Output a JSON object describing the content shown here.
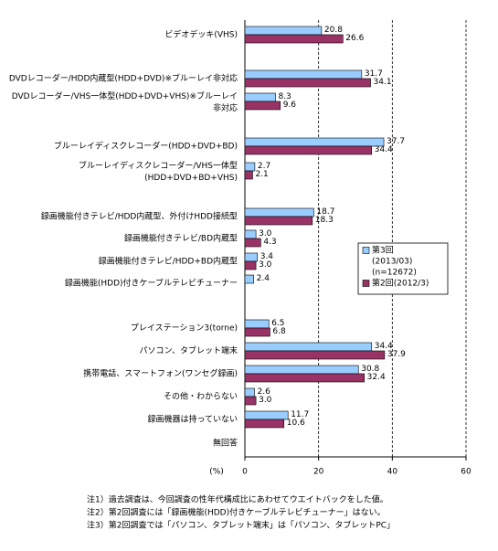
{
  "chart_data": {
    "type": "bar",
    "orientation": "horizontal",
    "categories": [
      "ビデオデッキ(VHS)",
      "DVDレコーダー/HDD内蔵型(HDD+DVD)※ブルーレイ非対応",
      "DVDレコーダー/VHS一体型(HDD+DVD+VHS)※ブルーレイ\n非対応",
      "ブルーレイディスクレコーダー(HDD+DVD+BD)",
      "ブルーレイディスクレコーダー/VHS一体型\n(HDD+DVD+BD+VHS)",
      "録画機能付きテレビ/HDD内蔵型、外付けHDD接続型",
      "録画機能付きテレビ/BD内蔵型",
      "録画機能付きテレビ/HDD+BD内蔵型",
      "録画機能(HDD)付きケーブルテレビチューナー",
      "プレイステーション3(torne)",
      "パソコン、タブレット端末",
      "携帯電話、スマートフォン(ワンセグ録画)",
      "その他・わからない",
      "録画機器は持っていない",
      "無回答"
    ],
    "series": [
      {
        "name": "第3回",
        "legend_subtext": [
          "(2013/03)",
          "(n=12672)"
        ],
        "color": "#99ccff",
        "values": [
          20.8,
          31.7,
          8.3,
          37.7,
          2.7,
          18.7,
          3.0,
          3.4,
          2.4,
          6.5,
          34.4,
          30.8,
          2.6,
          11.7,
          null
        ],
        "value_labels": [
          "20.8",
          "31.7",
          "8.3",
          "37.7",
          "2.7",
          "18.7",
          "3.0",
          "3.4",
          "2.4",
          "6.5",
          "34.4",
          "30.8",
          "2.6",
          "11.7",
          null
        ]
      },
      {
        "name": "第2回(2012/3)",
        "color": "#993366",
        "values": [
          26.6,
          34.1,
          9.6,
          34.4,
          2.1,
          18.3,
          4.3,
          3.0,
          null,
          6.8,
          37.9,
          32.4,
          3.0,
          10.6,
          null
        ],
        "value_labels": [
          "26.6",
          "34.1",
          "9.6",
          "34.4",
          "2.1",
          "18.3",
          "4.3",
          "3.0",
          null,
          "6.8",
          "37.9",
          "32.4",
          "3.0",
          "10.6",
          null
        ]
      }
    ],
    "x_label": "(%)",
    "xlim": [
      0,
      60
    ],
    "xticks": [
      0,
      20,
      40,
      60
    ],
    "grid": true,
    "notes": [
      "注1）過去調査は、今回調査の性年代構成比にあわせてウエイトバックをした値。",
      "注2）第2回調査には「録画機能(HDD)付きケーブルテレビチューナー」はない。",
      "注3）第2回調査では「パソコン、タブレット端末」は「パソコン、タブレットPC」"
    ]
  }
}
